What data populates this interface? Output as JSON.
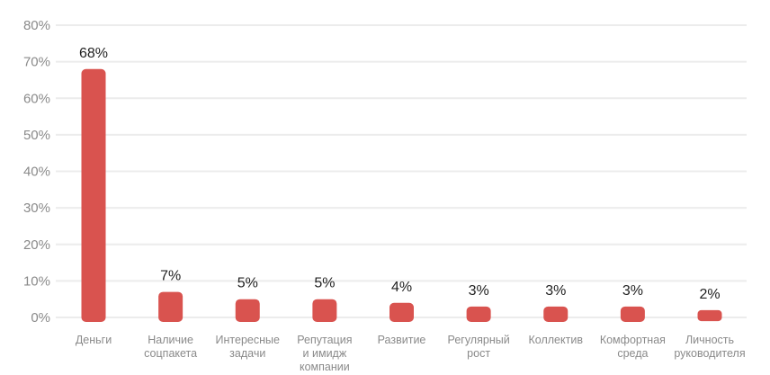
{
  "chart_data": {
    "type": "bar",
    "title": "",
    "xlabel": "",
    "ylabel": "",
    "ylim": [
      0,
      80
    ],
    "yticks": [
      "0%",
      "10%",
      "20%",
      "30%",
      "40%",
      "50%",
      "60%",
      "70%",
      "80%"
    ],
    "grid": true,
    "bar_color": "#d9534f",
    "categories": [
      [
        "Деньги"
      ],
      [
        "Наличие",
        "соцпакета"
      ],
      [
        "Интересные",
        "задачи"
      ],
      [
        "Репутация",
        "и имидж",
        "компании"
      ],
      [
        "Развитие"
      ],
      [
        "Регулярный",
        "рост"
      ],
      [
        "Коллектив"
      ],
      [
        "Комфортная",
        "среда"
      ],
      [
        "Личность",
        "руководителя"
      ]
    ],
    "values": [
      68,
      7,
      5,
      5,
      4,
      3,
      3,
      3,
      2
    ],
    "data_labels": [
      "68%",
      "7%",
      "5%",
      "5%",
      "4%",
      "3%",
      "3%",
      "3%",
      "2%"
    ]
  }
}
